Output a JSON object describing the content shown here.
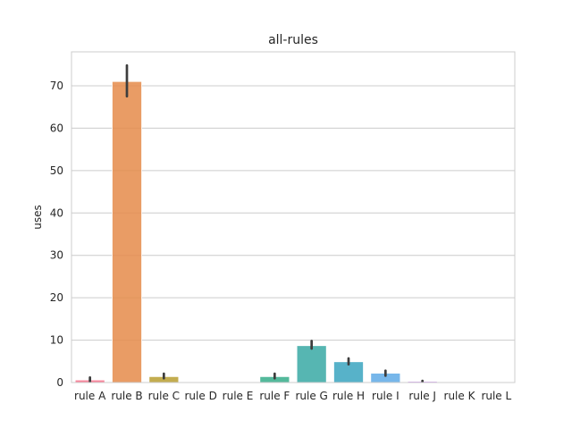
{
  "chart_data": {
    "type": "bar",
    "title": "all-rules",
    "xlabel": "",
    "ylabel": "uses",
    "ylim": [
      0,
      78
    ],
    "yticks": [
      0,
      10,
      20,
      30,
      40,
      50,
      60,
      70
    ],
    "grid": "y",
    "categories": [
      "rule A",
      "rule B",
      "rule C",
      "rule D",
      "rule E",
      "rule F",
      "rule G",
      "rule H",
      "rule I",
      "rule J",
      "rule K",
      "rule L"
    ],
    "values": [
      0.6,
      71.0,
      1.4,
      0.0,
      0.0,
      1.4,
      8.7,
      4.9,
      2.2,
      0.3,
      0.0,
      0.0
    ],
    "error_low": [
      0.3,
      67.5,
      1.0,
      0.0,
      0.0,
      1.0,
      8.0,
      4.3,
      1.6,
      0.2,
      0.0,
      0.0
    ],
    "error_high": [
      1.2,
      74.8,
      2.1,
      0.0,
      0.0,
      2.1,
      9.8,
      5.7,
      2.8,
      0.4,
      0.0,
      0.0
    ],
    "colors": [
      "#f77189",
      "#e58b4a",
      "#b89f31",
      "#97a431",
      "#50b131",
      "#36ad8a",
      "#38a9a5",
      "#3aa5bf",
      "#5faae6",
      "#d092f4",
      "#f561dd",
      "#f66cb3"
    ]
  }
}
